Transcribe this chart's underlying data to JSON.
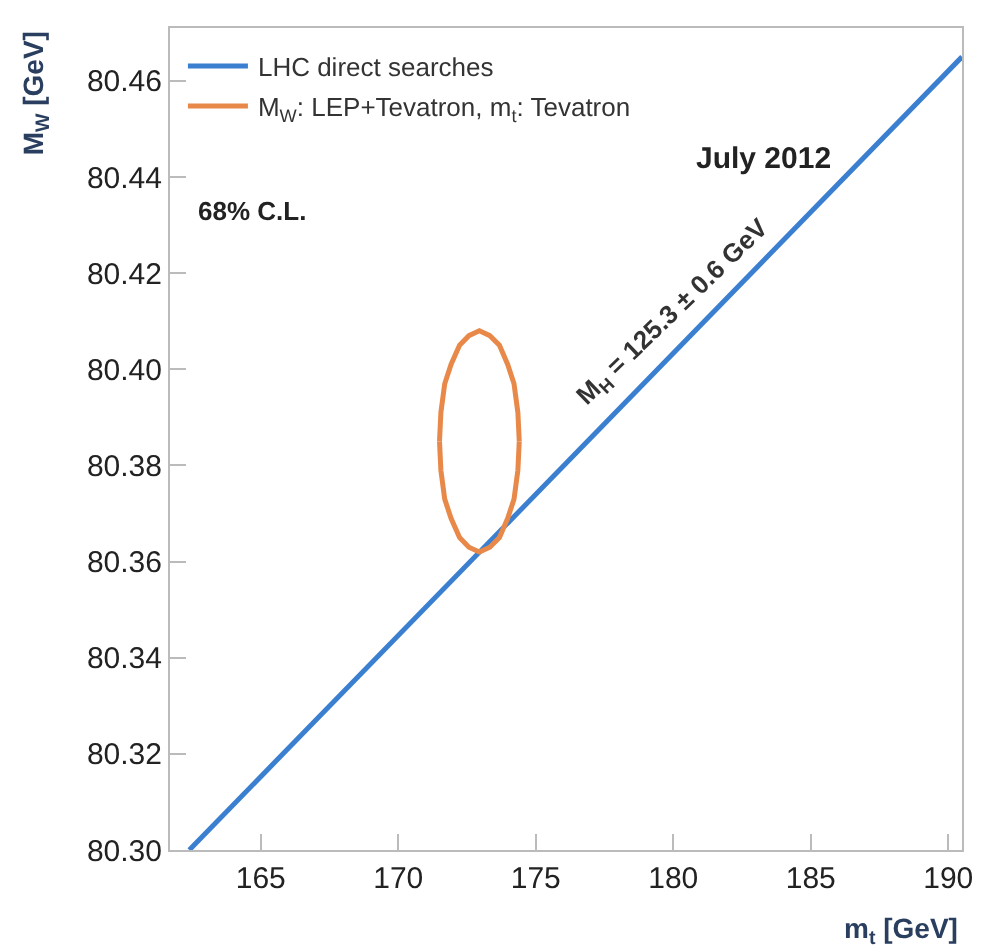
{
  "chart_data": {
    "type": "line",
    "xlabel": "m$_{t}$ [GeV]",
    "ylabel": "M$_{W}$ [GeV]",
    "series": [
      {
        "name": "LHC direct searches",
        "color": "#3a7fd0",
        "x": [
          162.4,
          190.5
        ],
        "values": [
          80.3,
          80.465
        ]
      },
      {
        "name": "M$_{W}$: LEP+Tevatron, m$_{t}$: Tevatron",
        "color": "#e8894a",
        "x": [
          171.5,
          171.55,
          171.69,
          171.92,
          172.23,
          172.57,
          172.95,
          173.33,
          173.68,
          173.98,
          174.21,
          174.35,
          174.4,
          null,
          171.5,
          171.55,
          171.69,
          171.92,
          172.23,
          172.57,
          172.95,
          173.33,
          173.68,
          173.98,
          174.21,
          174.35,
          174.4
        ],
        "values": [
          80.385,
          80.391,
          80.397,
          80.401,
          80.405,
          80.407,
          80.408,
          80.407,
          80.405,
          80.401,
          80.397,
          80.391,
          80.385,
          null,
          80.385,
          80.379,
          80.373,
          80.369,
          80.365,
          80.363,
          80.362,
          80.363,
          80.365,
          80.369,
          80.373,
          80.379,
          80.385
        ]
      }
    ],
    "annotations": [
      "68% C.L.",
      "July 2012",
      {
        "text": "M$_{H}$ = 125.3 ± 0.6 GeV",
        "x": 181,
        "y": 80.406
      }
    ],
    "xlim": [
      161.7,
      190.5
    ],
    "ylim": [
      80.3,
      80.471
    ],
    "xticks": [
      165,
      170,
      175,
      180,
      185,
      190
    ],
    "yticks": [
      {
        "value": 80.3,
        "label": "80.30"
      },
      {
        "value": 80.32,
        "label": "80.32"
      },
      {
        "value": 80.34,
        "label": "80.34"
      },
      {
        "value": 80.36,
        "label": "80.36"
      },
      {
        "value": 80.38,
        "label": "80.38"
      },
      {
        "value": 80.4,
        "label": "80.40"
      },
      {
        "value": 80.42,
        "label": "80.42"
      },
      {
        "value": 80.44,
        "label": "80.44"
      },
      {
        "value": 80.46,
        "label": "80.46"
      }
    ],
    "legend": "top left",
    "marker": "none",
    "line_style": "solid"
  }
}
